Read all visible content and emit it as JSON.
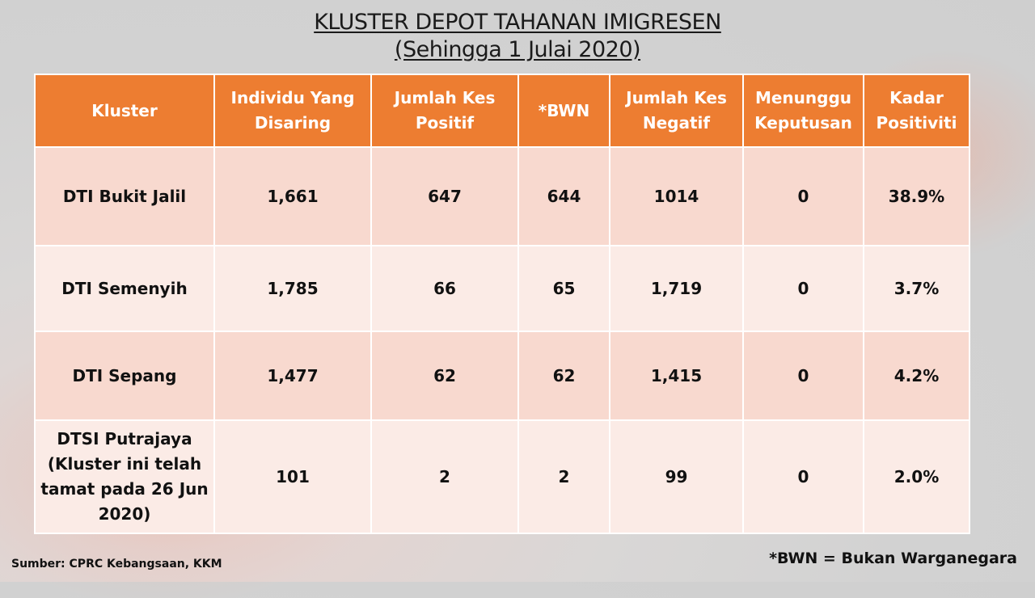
{
  "title": {
    "line1": "KLUSTER DEPOT TAHANAN IMIGRESEN",
    "line2": "(Sehingga 1 Julai 2020)"
  },
  "table": {
    "headers": [
      "Kluster",
      "Individu Yang Disaring",
      "Jumlah Kes Positif",
      "*BWN",
      "Jumlah Kes Negatif",
      "Menunggu Keputusan",
      "Kadar Positiviti"
    ],
    "rows": [
      [
        "DTI Bukit Jalil",
        "1,661",
        "647",
        "644",
        "1014",
        "0",
        "38.9%"
      ],
      [
        "DTI Semenyih",
        "1,785",
        "66",
        "65",
        "1,719",
        "0",
        "3.7%"
      ],
      [
        "DTI Sepang",
        "1,477",
        "62",
        "62",
        "1,415",
        "0",
        "4.2%"
      ],
      [
        "DTSI Putrajaya (Kluster ini telah tamat pada 26 Jun 2020)",
        "101",
        "2",
        "2",
        "99",
        "0",
        "2.0%"
      ]
    ]
  },
  "colors": {
    "header_bg": "#ed7d31",
    "row_odd_bg": "#f8d9cf",
    "row_even_bg": "#fbebe6"
  },
  "footer": {
    "source": "Sumber: CPRC Kebangsaan, KKM",
    "note": "*BWN = Bukan Warganegara"
  }
}
